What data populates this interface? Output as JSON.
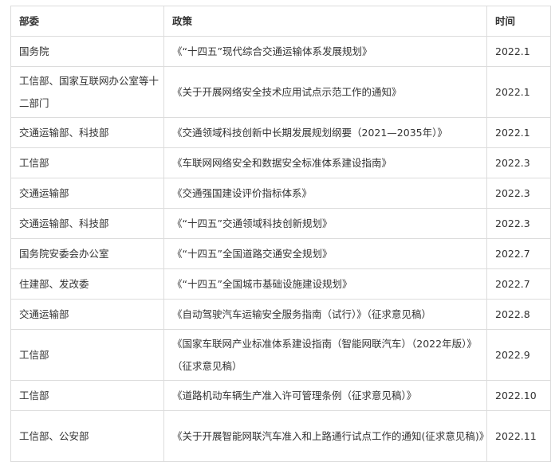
{
  "table": {
    "headers": [
      "部委",
      "政策",
      "时间"
    ],
    "rows": [
      {
        "dept": "国务院",
        "policy": "《“十四五”现代综合交通运输体系发展规划》",
        "date": "2022.1"
      },
      {
        "dept": "工信部、国家互联网办公室等十二部门",
        "policy": "《关于开展网络安全技术应用试点示范工作的通知》",
        "date": "2022.1"
      },
      {
        "dept": "交通运输部、科技部",
        "policy": "《交通领域科技创新中长期发展规划纲要（2021—2035年）》",
        "date": "2022.1"
      },
      {
        "dept": "工信部",
        "policy": "《车联网网络安全和数据安全标准体系建设指南》",
        "date": "2022.3"
      },
      {
        "dept": "交通运输部",
        "policy": "《交通强国建设评价指标体系》",
        "date": "2022.3"
      },
      {
        "dept": "交通运输部、科技部",
        "policy": "《“十四五”交通领域科技创新规划》",
        "date": "2022.3"
      },
      {
        "dept": "国务院安委会办公室",
        "policy": "《“十四五”全国道路交通安全规划》",
        "date": "2022.7"
      },
      {
        "dept": "住建部、发改委",
        "policy": "《“十四五”全国城市基础设施建设规划》",
        "date": "2022.7"
      },
      {
        "dept": "交通运输部",
        "policy": "《自动驾驶汽车运输安全服务指南（试行）》（征求意见稿）",
        "date": "2022.8"
      },
      {
        "dept": "工信部",
        "policy": "《国家车联网产业标准体系建设指南（智能网联汽车）（2022年版）》（征求意见稿）",
        "date": "2022.9"
      },
      {
        "dept": "工信部",
        "policy": "《道路机动车辆生产准入许可管理条例（征求意见稿）》",
        "date": "2022.10"
      },
      {
        "dept": "工信部、公安部",
        "policy": "《关于开展智能网联汽车准入和上路通行试点工作的通知(征求意见稿)》",
        "date": "2022.11"
      }
    ]
  }
}
